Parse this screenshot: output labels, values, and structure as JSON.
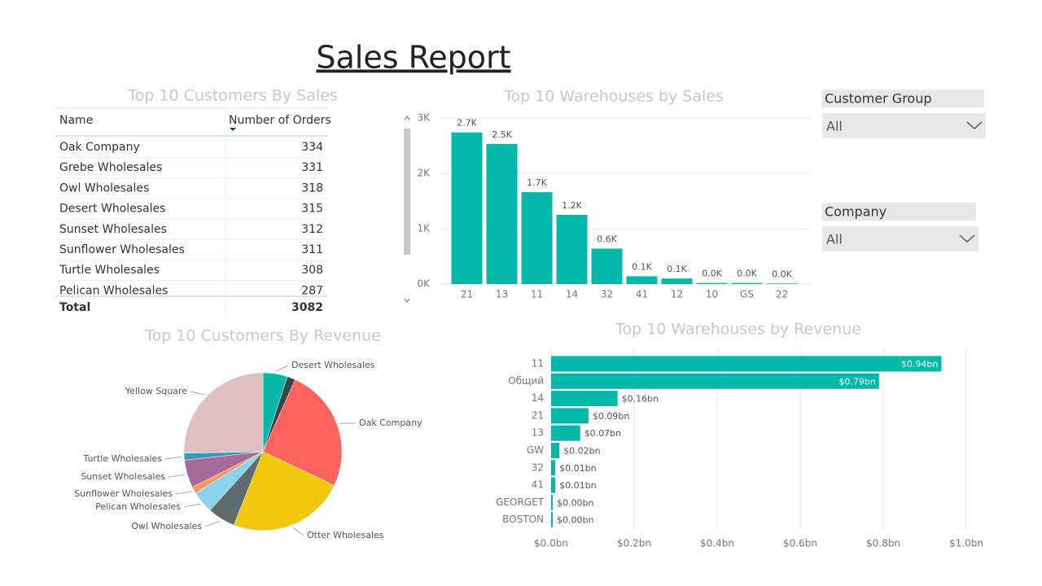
{
  "title": "Sales Report",
  "table": {
    "title": "Top 10 Customers By Sales",
    "columns": [
      "Name",
      "Number of Orders"
    ],
    "rows": [
      [
        "Oak Company",
        334
      ],
      [
        "Grebe Wholesales",
        331
      ],
      [
        "Owl Wholesales",
        318
      ],
      [
        "Desert Wholesales",
        315
      ],
      [
        "Sunset Wholesales",
        312
      ],
      [
        "Sunflower Wholesales",
        311
      ],
      [
        "Turtle Wholesales",
        308
      ],
      [
        "Pelican Wholesales",
        287
      ]
    ],
    "total": [
      "Total",
      3082
    ]
  },
  "slicers": [
    {
      "label": "Customer Group",
      "value": "All"
    },
    {
      "label": "Company",
      "value": "All"
    }
  ],
  "chart_data": [
    {
      "type": "bar",
      "title": "Top 10 Warehouses by Sales",
      "categories": [
        "21",
        "13",
        "11",
        "14",
        "32",
        "41",
        "12",
        "10",
        "GS",
        "22"
      ],
      "values": [
        2740,
        2530,
        1660,
        1250,
        640,
        140,
        100,
        20,
        20,
        10
      ],
      "value_labels": [
        "2.7K",
        "2.5K",
        "1.7K",
        "1.2K",
        "0.6K",
        "0.1K",
        "0.1K",
        "0.0K",
        "0.0K",
        "0.0K"
      ],
      "color": "#01b8aa",
      "ylim": [
        0,
        3000
      ],
      "yticks": [
        {
          "value": 0,
          "label": "0K"
        },
        {
          "value": 1000,
          "label": "1K"
        },
        {
          "value": 2000,
          "label": "2K"
        },
        {
          "value": 3000,
          "label": "3K"
        }
      ],
      "grid": true
    },
    {
      "type": "pie",
      "title": "Top 10 Customers By Revenue",
      "categories": [
        "Desert Wholesales",
        null,
        "Oak Company",
        "Otter Wholesales",
        "Owl Wholesales",
        "Pelican Wholesales",
        "Sunflower Wholesales",
        "Sunset Wholesales",
        "Turtle Wholesales",
        "Yellow Square"
      ],
      "values": [
        5,
        1.7,
        25.3,
        24,
        5.7,
        4.5,
        1.4,
        5.7,
        1.4,
        25.3
      ],
      "colors": [
        "#01b8aa",
        "#374649",
        "#fd625e",
        "#f2c80f",
        "#5f6b6d",
        "#8ad4eb",
        "#fe9666",
        "#a66999",
        "#3599b8",
        "#dfbfbf"
      ]
    },
    {
      "type": "barh",
      "title": "Top 10 Warehouses by Revenue",
      "categories": [
        "11",
        "Общий",
        "14",
        "21",
        "13",
        "GW",
        "32",
        "41",
        "GEORGET",
        "BOSTON"
      ],
      "values": [
        0.94,
        0.79,
        0.16,
        0.09,
        0.07,
        0.02,
        0.01,
        0.01,
        0.004,
        0.004
      ],
      "value_labels": [
        "$0.94bn",
        "$0.79bn",
        "$0.16bn",
        "$0.09bn",
        "$0.07bn",
        "$0.02bn",
        "$0.01bn",
        "$0.01bn",
        "$0.00bn",
        "$0.00bn"
      ],
      "color": "#01b8aa",
      "xlim": [
        0,
        1.0
      ],
      "xticks": [
        {
          "value": 0,
          "label": "$0.0bn"
        },
        {
          "value": 0.2,
          "label": "$0.2bn"
        },
        {
          "value": 0.4,
          "label": "$0.4bn"
        },
        {
          "value": 0.6,
          "label": "$0.6bn"
        },
        {
          "value": 0.8,
          "label": "$0.8bn"
        },
        {
          "value": 1.0,
          "label": "$1.0bn"
        }
      ],
      "grid": true
    }
  ]
}
